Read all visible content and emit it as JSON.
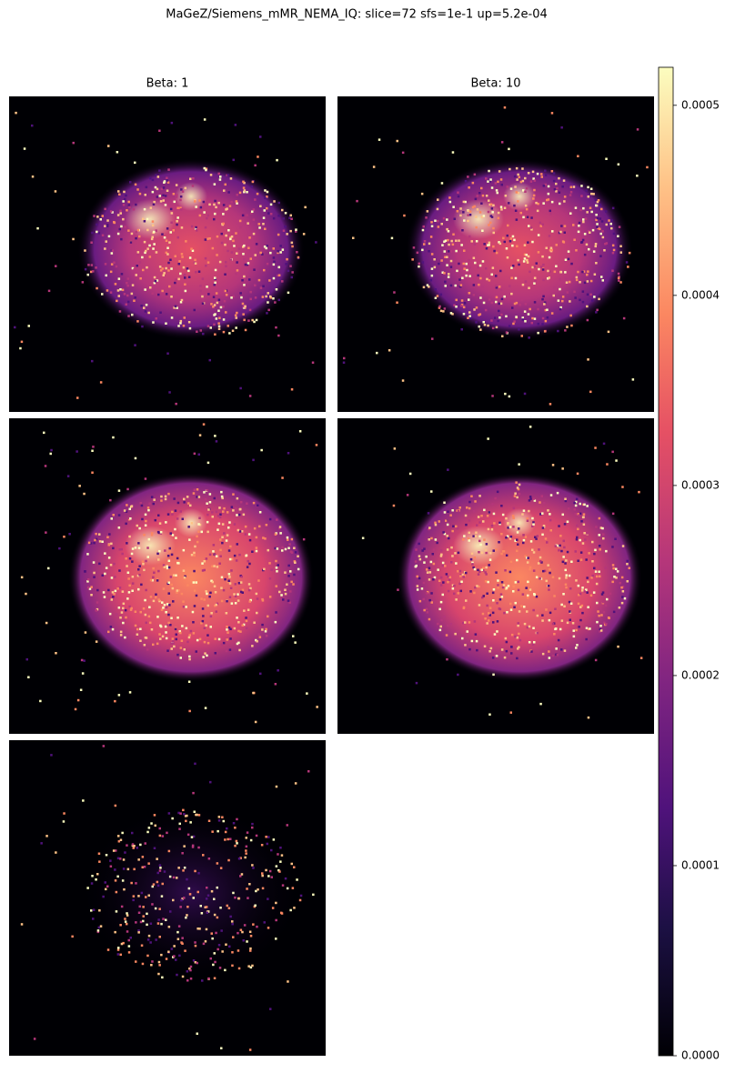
{
  "chart_data": {
    "type": "image-grid",
    "title": "MaGeZ/Siemens_mMR_NEMA_IQ: slice=72 sfs=1e-1 up=5.2e-04",
    "panel_titles": [
      "Beta: 1",
      "Beta: 10"
    ],
    "colormap": "magma",
    "ylim": [
      0,
      0.00052
    ],
    "yticks": [
      {
        "value": 0,
        "label": "0.0000"
      },
      0.0001,
      0.0002,
      0.0003,
      0.0004,
      0.0005
    ]
  }
}
